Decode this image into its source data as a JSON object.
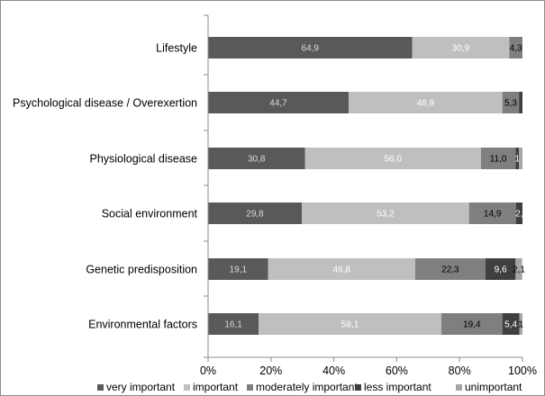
{
  "chart_data": {
    "type": "bar",
    "orientation": "horizontal",
    "stacked": "percent",
    "title": "",
    "xlabel": "",
    "ylabel": "",
    "xlim": [
      0,
      100
    ],
    "x_ticks": [
      "0%",
      "20%",
      "40%",
      "60%",
      "80%",
      "100%"
    ],
    "grid": false,
    "legend_position": "bottom",
    "categories": [
      "Lifestyle",
      "Psychological disease / Overexertion",
      "Physiological disease",
      "Social environment",
      "Genetic predisposition",
      "Environmental factors"
    ],
    "series": [
      {
        "name": "very important",
        "color": "#595959",
        "label_color": "#d9d9d9",
        "values": [
          64.9,
          44.7,
          30.8,
          29.8,
          19.1,
          16.1
        ],
        "labels": [
          "64,9",
          "44,7",
          "30,8",
          "29,8",
          "19,1",
          "16,1"
        ]
      },
      {
        "name": "important",
        "color": "#bfbfbf",
        "label_color": "#ffffff",
        "values": [
          30.9,
          48.9,
          56.0,
          53.2,
          46.8,
          58.1
        ],
        "labels": [
          "30,9",
          "48,9",
          "56,0",
          "53,2",
          "46,8",
          "58,1"
        ]
      },
      {
        "name": "moderately important",
        "color": "#7f7f7f",
        "label_color": "#000000",
        "values": [
          4.3,
          5.3,
          11.0,
          14.9,
          22.3,
          19.4
        ],
        "labels": [
          "4,3",
          "5,3",
          "11,0",
          "14,9",
          "22,3",
          "19,4"
        ]
      },
      {
        "name": "less important",
        "color": "#3f3f3f",
        "label_color": "#ffffff",
        "values": [
          0.0,
          1.1,
          1.1,
          2.1,
          9.6,
          5.4
        ],
        "labels": [
          "",
          "",
          "1",
          "2,",
          "9,6",
          "5,4"
        ]
      },
      {
        "name": "unimportant",
        "color": "#a6a6a6",
        "label_color": "#000000",
        "values": [
          0.0,
          0.0,
          1.1,
          0.0,
          2.1,
          1.1
        ],
        "labels": [
          "",
          "",
          "",
          "",
          "2,1",
          "1"
        ]
      }
    ]
  }
}
